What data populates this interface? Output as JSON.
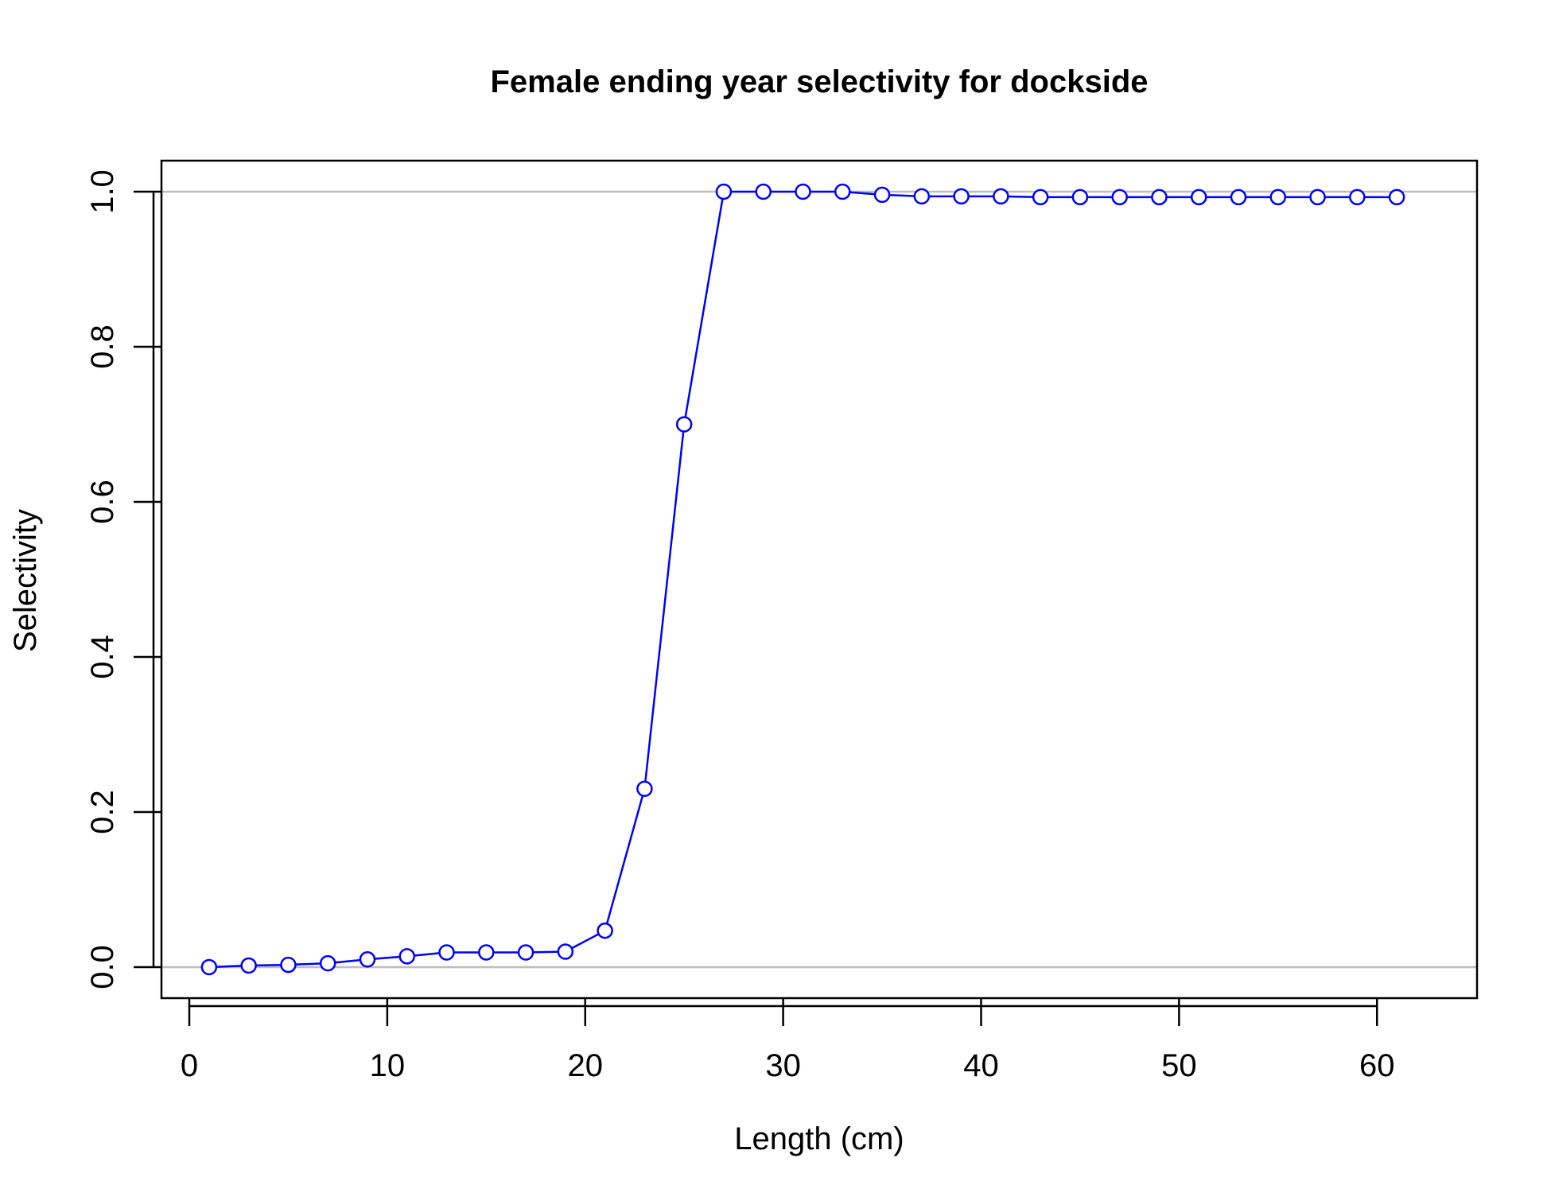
{
  "chart_data": {
    "type": "line",
    "title": "Female ending year selectivity for dockside",
    "xlabel": "Length (cm)",
    "ylabel": "Selectivity",
    "xlim": [
      0,
      62
    ],
    "ylim": [
      0,
      1
    ],
    "x_ticks": [
      0,
      10,
      20,
      30,
      40,
      50,
      60
    ],
    "x_tick_labels": [
      "0",
      "10",
      "20",
      "30",
      "40",
      "50",
      "60"
    ],
    "y_ticks": [
      0,
      0.2,
      0.4,
      0.6,
      0.8,
      1.0
    ],
    "y_tick_labels": [
      "0.0",
      "0.2",
      "0.4",
      "0.6",
      "0.8",
      "1.0"
    ],
    "reference_lines": [
      0,
      1
    ],
    "grid": false,
    "colors": {
      "series": "#0000ff",
      "reference": "#bebebe",
      "axes": "#000000"
    },
    "series": [
      {
        "marker": "open-circle",
        "x": [
          1,
          3,
          5,
          7,
          9,
          11,
          13,
          15,
          17,
          19,
          21,
          23,
          25,
          27,
          29,
          31,
          33,
          35,
          37,
          39,
          41,
          43,
          45,
          47,
          49,
          51,
          53,
          55,
          57,
          59,
          61
        ],
        "values": [
          0.0,
          0.002,
          0.003,
          0.005,
          0.01,
          0.014,
          0.019,
          0.019,
          0.019,
          0.02,
          0.047,
          0.23,
          0.7,
          1.0,
          1.0,
          1.0,
          1.0,
          0.996,
          0.994,
          0.994,
          0.994,
          0.993,
          0.993,
          0.993,
          0.993,
          0.993,
          0.993,
          0.993,
          0.993,
          0.993,
          0.993
        ]
      }
    ]
  }
}
